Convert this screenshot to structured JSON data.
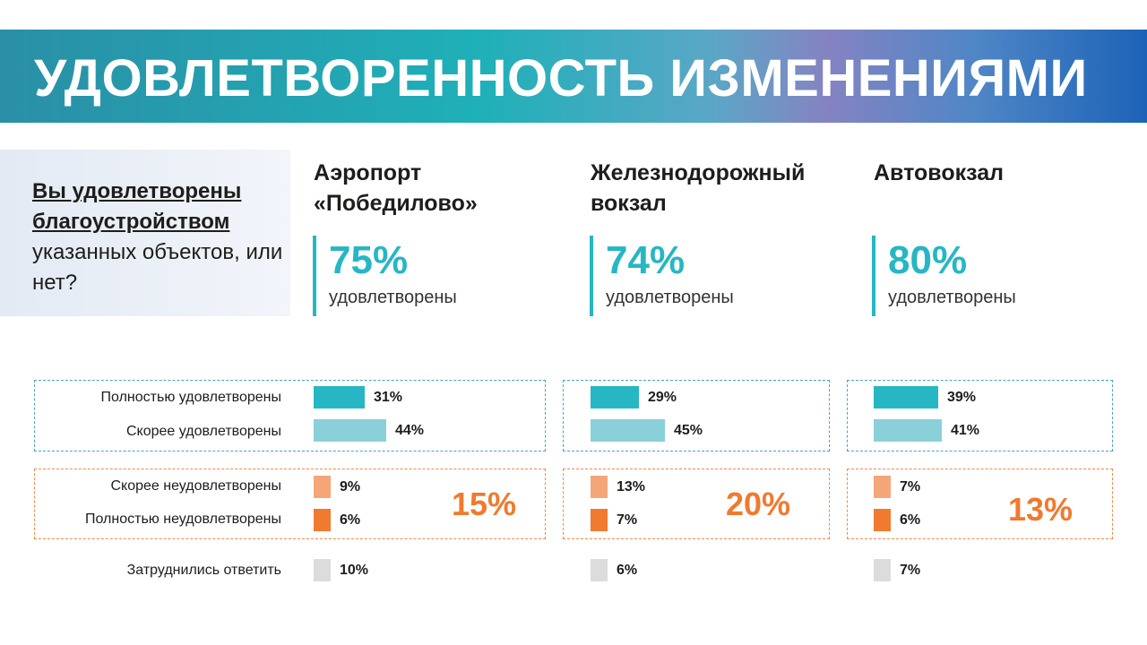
{
  "header": {
    "title": "УДОВЛЕТВОРЕННОСТЬ ИЗМЕНЕНИЯМИ"
  },
  "question": {
    "bold": "Вы удовлетворены благоустройством",
    "rest": "указанных объектов, или нет?"
  },
  "colors": {
    "fully_satisfied": "#27b6c4",
    "rather_satisfied": "#8ad0d8",
    "rather_dissatisfied": "#f5a679",
    "fully_dissatisfied": "#ef7a30",
    "hard_to_answer": "#dcdcdc",
    "accent_teal": "#27b6c4",
    "accent_orange": "#ef7a30"
  },
  "chart_data": {
    "type": "bar",
    "orientation": "horizontal",
    "categories": [
      "Полностью удовлетворены",
      "Скорее удовлетворены",
      "Скорее неудовлетворены",
      "Полностью неудовлетворены",
      "Затруднились ответить"
    ],
    "series": [
      {
        "name": "Аэропорт «Победилово»",
        "values": [
          31,
          44,
          9,
          6,
          10
        ],
        "value_labels": [
          "31%",
          "44%",
          "9%",
          "6%",
          "10%"
        ],
        "satisfied_total": "75%",
        "satisfied_label": "удовлетворены",
        "dissatisfied_total": "15%"
      },
      {
        "name": "Железнодорожный вокзал",
        "values": [
          29,
          45,
          13,
          7,
          6
        ],
        "value_labels": [
          "29%",
          "45%",
          "13%",
          "7%",
          "6%"
        ],
        "satisfied_total": "74%",
        "satisfied_label": "удовлетворены",
        "dissatisfied_total": "20%"
      },
      {
        "name": "Автовокзал",
        "values": [
          39,
          41,
          7,
          6,
          7
        ],
        "value_labels": [
          "39%",
          "41%",
          "7%",
          "6%",
          "7%"
        ],
        "satisfied_total": "80%",
        "satisfied_label": "удовлетворены",
        "dissatisfied_total": "13%"
      }
    ],
    "unit": "%"
  }
}
